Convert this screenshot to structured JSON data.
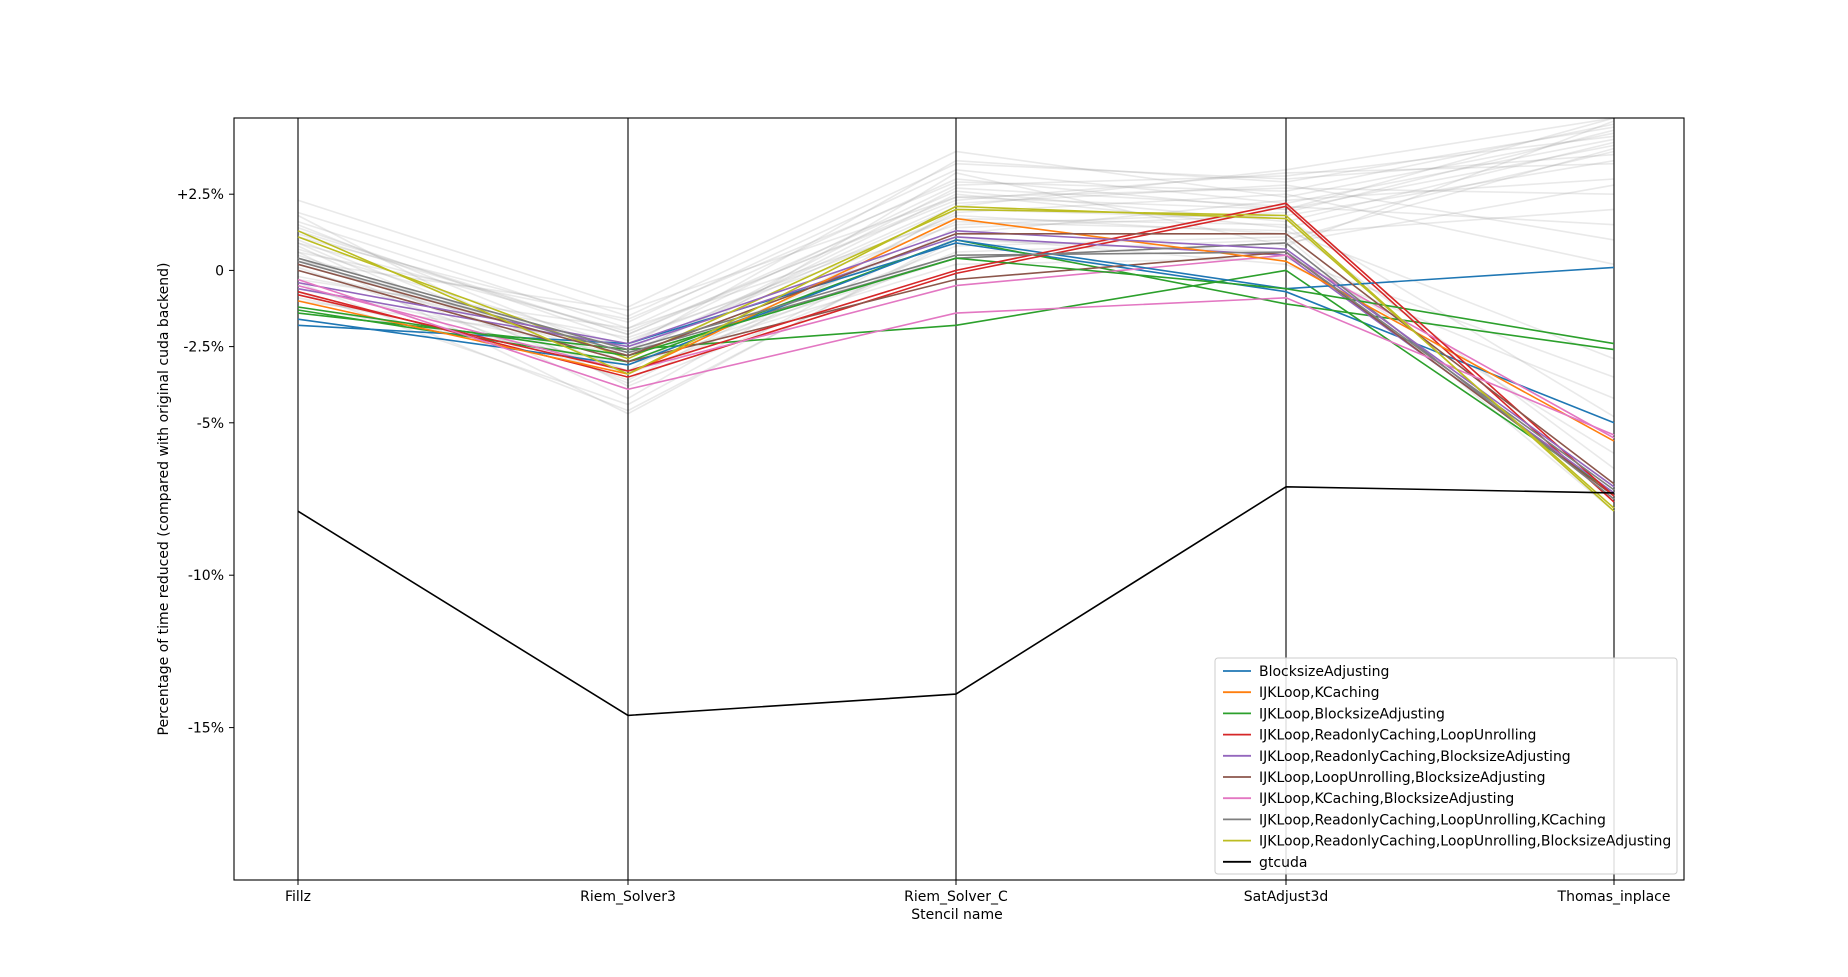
{
  "chart_data": {
    "type": "line",
    "xlabel": "Stencil name",
    "ylabel": "Percentage of time reduced (compared with original cuda backend)",
    "categories": [
      "Fillz",
      "Riem_Solver3",
      "Riem_Solver_C",
      "SatAdjust3d",
      "Thomas_inplace"
    ],
    "ylim": [
      -20,
      5
    ],
    "yticks": [
      2.5,
      0,
      -2.5,
      -5,
      -10,
      -15
    ],
    "ytick_labels": [
      "+2.5%",
      "0",
      "-2.5%",
      "-5%",
      "-10%",
      "-15%"
    ],
    "legend_position": "lower-right",
    "grid": false,
    "series": [
      {
        "name": "BlocksizeAdjusting",
        "color": "#1f77b4",
        "values": [
          -1.6,
          -3.1,
          1.0,
          -0.6,
          0.1
        ]
      },
      {
        "name": "IJKLoop,KCaching",
        "color": "#ff7f0e",
        "values": [
          -1.0,
          -3.4,
          1.7,
          0.3,
          -5.6
        ]
      },
      {
        "name": "IJKLoop,BlocksizeAdjusting",
        "color": "#2ca02c",
        "values": [
          -1.2,
          -2.8,
          0.4,
          -0.6,
          -2.4
        ]
      },
      {
        "name": "IJKLoop,ReadonlyCaching,LoopUnrolling",
        "color": "#d62728",
        "values": [
          -0.8,
          -3.3,
          0.0,
          2.2,
          -7.4
        ]
      },
      {
        "name": "IJKLoop,ReadonlyCaching,BlocksizeAdjusting",
        "color": "#9467bd",
        "values": [
          -0.4,
          -2.4,
          1.3,
          0.7,
          -7.1
        ]
      },
      {
        "name": "IJKLoop,LoopUnrolling,BlocksizeAdjusting",
        "color": "#8c564b",
        "values": [
          0.2,
          -2.8,
          1.2,
          1.2,
          -7.0
        ]
      },
      {
        "name": "IJKLoop,KCaching,BlocksizeAdjusting",
        "color": "#e377c2",
        "values": [
          -0.3,
          -3.9,
          -1.4,
          -0.9,
          -5.4
        ]
      },
      {
        "name": "IJKLoop,ReadonlyCaching,LoopUnrolling,KCaching",
        "color": "#7f7f7f",
        "values": [
          0.4,
          -2.6,
          0.5,
          0.6,
          -7.2
        ]
      },
      {
        "name": "IJKLoop,ReadonlyCaching,LoopUnrolling,BlocksizeAdjusting",
        "color": "#bcbd22",
        "values": [
          1.3,
          -3.4,
          2.1,
          1.7,
          -7.8
        ]
      },
      {
        "name": "gtcuda",
        "color": "#000000",
        "values": [
          -7.9,
          -14.6,
          -13.9,
          -7.1,
          -7.3
        ]
      }
    ],
    "extra_colored_lines": [
      {
        "color": "#1f77b4",
        "values": [
          -1.8,
          -2.4,
          0.9,
          -0.7,
          -5.0
        ]
      },
      {
        "color": "#2ca02c",
        "values": [
          -1.4,
          -2.6,
          -1.8,
          0.0,
          -7.3
        ]
      },
      {
        "color": "#2ca02c",
        "values": [
          -1.3,
          -3.0,
          1.0,
          -1.1,
          -2.6
        ]
      },
      {
        "color": "#d62728",
        "values": [
          -0.7,
          -3.5,
          -0.1,
          2.1,
          -7.6
        ]
      },
      {
        "color": "#9467bd",
        "values": [
          -0.6,
          -2.5,
          1.1,
          0.5,
          -7.3
        ]
      },
      {
        "color": "#e377c2",
        "values": [
          -0.5,
          -3.3,
          -0.5,
          0.5,
          -5.5
        ]
      },
      {
        "color": "#8c564b",
        "values": [
          0.0,
          -3.0,
          -0.3,
          0.6,
          -7.4
        ]
      },
      {
        "color": "#bcbd22",
        "values": [
          1.1,
          -2.9,
          2.0,
          1.8,
          -7.9
        ]
      },
      {
        "color": "#7f7f7f",
        "values": [
          0.3,
          -2.7,
          0.4,
          0.9,
          -7.5
        ]
      }
    ],
    "background_lines": [
      [
        2.3,
        -1.2,
        3.9,
        2.4,
        4.5
      ],
      [
        1.9,
        -1.5,
        3.5,
        3.0,
        3.8
      ],
      [
        1.6,
        -1.9,
        3.0,
        2.0,
        5.0
      ],
      [
        1.2,
        -2.1,
        2.6,
        1.6,
        4.2
      ],
      [
        0.9,
        -2.0,
        2.3,
        3.2,
        3.5
      ],
      [
        0.6,
        -1.6,
        2.9,
        2.6,
        4.8
      ],
      [
        1.4,
        -2.3,
        1.8,
        1.2,
        2.0
      ],
      [
        0.2,
        -2.6,
        2.2,
        2.8,
        1.0
      ],
      [
        -0.2,
        -2.2,
        1.5,
        1.9,
        4.6
      ],
      [
        0.5,
        -3.0,
        1.2,
        2.3,
        3.0
      ],
      [
        1.0,
        -3.3,
        3.2,
        0.8,
        4.9
      ],
      [
        -0.6,
        -2.8,
        2.5,
        1.4,
        3.9
      ],
      [
        0.1,
        -3.6,
        1.9,
        2.5,
        0.2
      ],
      [
        -1.0,
        -2.4,
        2.8,
        3.1,
        4.4
      ],
      [
        0.8,
        -4.2,
        2.0,
        1.7,
        -4.8
      ],
      [
        -0.4,
        -4.6,
        1.0,
        0.6,
        -6.0
      ],
      [
        1.8,
        -3.8,
        0.6,
        1.0,
        4.0
      ],
      [
        0.3,
        -1.3,
        2.4,
        2.7,
        2.5
      ],
      [
        -0.9,
        -3.1,
        0.2,
        0.4,
        -3.5
      ],
      [
        0.7,
        -2.5,
        3.6,
        2.9,
        4.7
      ],
      [
        1.5,
        -2.8,
        2.7,
        2.1,
        1.5
      ],
      [
        -0.3,
        -1.9,
        1.7,
        1.5,
        -6.5
      ],
      [
        0.4,
        -3.4,
        0.8,
        1.1,
        -7.9
      ],
      [
        1.1,
        -1.7,
        3.3,
        2.2,
        4.3
      ],
      [
        -0.7,
        -4.4,
        1.4,
        1.8,
        3.6
      ],
      [
        0.0,
        -2.7,
        2.1,
        3.3,
        5.0
      ],
      [
        0.9,
        -3.7,
        1.6,
        1.3,
        -2.9
      ],
      [
        -1.2,
        -3.0,
        0.4,
        0.9,
        2.8
      ],
      [
        1.3,
        -2.1,
        2.4,
        2.0,
        4.1
      ],
      [
        0.6,
        -4.7,
        1.1,
        0.2,
        -4.2
      ]
    ]
  }
}
